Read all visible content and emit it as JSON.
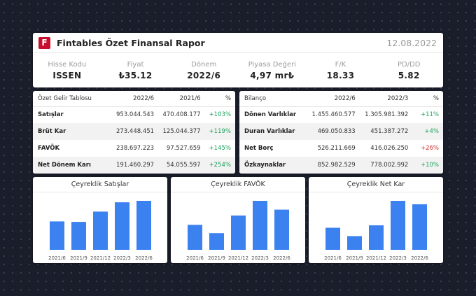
{
  "header": {
    "logo_letter": "F",
    "title": "Fintables Özet Finansal Rapor",
    "date": "12.08.2022",
    "metrics": [
      {
        "label": "Hisse Kodu",
        "value": "ISSEN"
      },
      {
        "label": "Fiyat",
        "value": "₺35.12"
      },
      {
        "label": "Dönem",
        "value": "2022/6"
      },
      {
        "label": "Piyasa Değeri",
        "value": "4,97 mr₺"
      },
      {
        "label": "F/K",
        "value": "18.33"
      },
      {
        "label": "PD/DD",
        "value": "5.82"
      }
    ]
  },
  "income": {
    "headers": [
      "Özet Gelir Tablosu",
      "2022/6",
      "2021/6",
      "%"
    ],
    "rows": [
      [
        "Satışlar",
        "953.044.543",
        "470.408.177",
        "+103%"
      ],
      [
        "Brüt Kar",
        "273.448.451",
        "125.044.377",
        "+119%"
      ],
      [
        "FAVÖK",
        "238.697.223",
        "97.527.659",
        "+145%"
      ],
      [
        "Net Dönem Karı",
        "191.460.297",
        "54.055.597",
        "+254%"
      ]
    ]
  },
  "balance": {
    "headers": [
      "Bilanço",
      "2022/6",
      "2022/3",
      "%"
    ],
    "rows": [
      [
        "Dönen Varlıklar",
        "1.455.460.577",
        "1.305.981.392",
        "+11%"
      ],
      [
        "Duran Varlıklar",
        "469.050.833",
        "451.387.272",
        "+4%"
      ],
      [
        "Net Borç",
        "526.211.669",
        "416.026.250",
        "+26%"
      ],
      [
        "Özkaynaklar",
        "852.982.529",
        "778.002.992",
        "+10%"
      ]
    ]
  },
  "colors": {
    "bar": "#3b82f0",
    "positive": "#1ca35a",
    "negative": "#d43131",
    "brand": "#c8102e"
  },
  "chart_data": [
    {
      "type": "bar",
      "title": "Çeyreklik Satışlar",
      "categories": [
        "2021/6",
        "2021/9",
        "2021/12",
        "2022/3",
        "2022/6"
      ],
      "values": [
        58,
        57,
        78,
        97,
        100
      ],
      "ylim": [
        0,
        100
      ]
    },
    {
      "type": "bar",
      "title": "Çeyreklik FAVÖK",
      "categories": [
        "2021/6",
        "2021/9",
        "2021/12",
        "2022/3",
        "2022/6"
      ],
      "values": [
        51,
        34,
        70,
        100,
        82
      ],
      "ylim": [
        0,
        100
      ]
    },
    {
      "type": "bar",
      "title": "Çeyreklik Net Kar",
      "categories": [
        "2021/6",
        "2021/9",
        "2021/12",
        "2022/3",
        "2022/6"
      ],
      "values": [
        45,
        28,
        50,
        100,
        93
      ],
      "ylim": [
        0,
        100
      ]
    }
  ]
}
